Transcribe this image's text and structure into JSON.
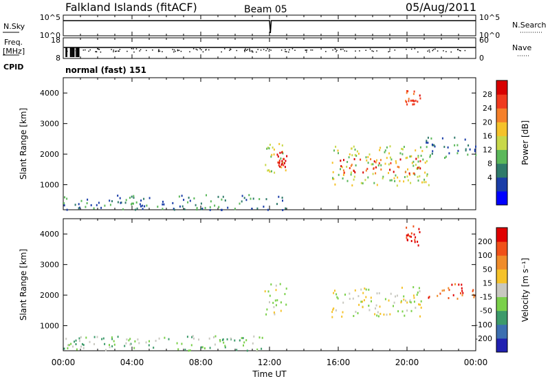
{
  "header": {
    "station": "Falkland Islands (fitACF)",
    "beam": "Beam 05",
    "date": "05/Aug/2011"
  },
  "left_labels": {
    "nsky": "N.Sky",
    "freq": "Freq.",
    "freq_unit": "[MHz]",
    "cpid": "CPID"
  },
  "right_labels": {
    "nsearch": "N.Search",
    "nave": "Nave"
  },
  "cpid_text": "normal (fast) 151",
  "chart_data": [
    {
      "type": "line",
      "name": "noise-panel",
      "left_label": "N.Sky",
      "right_label": "N.Search",
      "left_ticks": [
        "10^5",
        "10^0"
      ],
      "right_ticks": [
        "10^5",
        "10^0"
      ],
      "x_range_hours": [
        0,
        24
      ],
      "series": [
        {
          "x": [
            0.0,
            0.5,
            12.0,
            12.05,
            12.1,
            24.0
          ],
          "y": [
            5,
            5,
            5,
            0,
            5,
            5
          ]
        }
      ]
    },
    {
      "type": "scatter",
      "name": "freq-nave-panel",
      "left_label": "Freq. [MHz]",
      "right_label": "Nave",
      "left_ticks": [
        "18",
        "8"
      ],
      "right_ticks": [
        "60",
        "0"
      ],
      "x_range_hours": [
        0,
        24
      ],
      "series": [
        {
          "x": [
            0.0,
            0.5,
            1.0,
            12.0,
            24.0
          ],
          "y": [
            12,
            12,
            12,
            12,
            12
          ]
        }
      ]
    },
    {
      "type": "heatmap",
      "name": "power",
      "xlabel": "",
      "ylabel": "Slant Range [km]",
      "yticks": [
        1000,
        2000,
        3000,
        4000
      ],
      "ylim": [
        180,
        4500
      ],
      "colorbar": {
        "label": "Power [dB]",
        "ticks": [
          "28",
          "24",
          "20",
          "16",
          "12",
          "8",
          "4"
        ],
        "colors": [
          "#0000ff",
          "#1a3da8",
          "#2f7a6a",
          "#5bb85a",
          "#c8d84a",
          "#f5c22a",
          "#f5802a",
          "#f03a1e",
          "#d80000"
        ]
      },
      "regions": [
        {
          "t": [
            0.0,
            13.0
          ],
          "r": [
            200,
            700
          ],
          "level": 2
        },
        {
          "t": [
            11.7,
            13.0
          ],
          "r": [
            1300,
            2400
          ],
          "level": 4
        },
        {
          "t": [
            12.4,
            13.0
          ],
          "r": [
            1600,
            2100
          ],
          "level": 8
        },
        {
          "t": [
            15.6,
            21.3
          ],
          "r": [
            1000,
            2300
          ],
          "level": 4
        },
        {
          "t": [
            16.0,
            20.8
          ],
          "r": [
            1400,
            1900
          ],
          "level": 7
        },
        {
          "t": [
            19.8,
            20.8
          ],
          "r": [
            3600,
            4100
          ],
          "level": 7
        },
        {
          "t": [
            21.0,
            24.0
          ],
          "r": [
            1900,
            2600
          ],
          "level": 2
        }
      ]
    },
    {
      "type": "heatmap",
      "name": "velocity",
      "xlabel": "Time UT",
      "ylabel": "Slant Range [km]",
      "yticks": [
        1000,
        2000,
        3000,
        4000
      ],
      "ylim": [
        180,
        4500
      ],
      "xticks": [
        "00:00",
        "04:00",
        "08:00",
        "12:00",
        "16:00",
        "20:00",
        "00:00"
      ],
      "colorbar": {
        "label": "Velocity [m s⁻¹]",
        "ticks": [
          "200",
          "100",
          "50",
          "15",
          "-15",
          "-50",
          "-100",
          "-200"
        ],
        "colors": [
          "#2020b0",
          "#3c6fb0",
          "#3c9a6a",
          "#7ad04a",
          "#c8c8c0",
          "#f5c22a",
          "#f08c2a",
          "#f05018",
          "#e00000"
        ]
      },
      "regions": [
        {
          "t": [
            0.0,
            12.0
          ],
          "r": [
            200,
            700
          ],
          "level": 3
        },
        {
          "t": [
            11.7,
            13.0
          ],
          "r": [
            1400,
            2400
          ],
          "level": 4
        },
        {
          "t": [
            15.6,
            20.8
          ],
          "r": [
            1300,
            2300
          ],
          "level": 4
        },
        {
          "t": [
            19.8,
            20.8
          ],
          "r": [
            3600,
            4300
          ],
          "level": 8
        },
        {
          "t": [
            21.0,
            24.0
          ],
          "r": [
            1900,
            2400
          ],
          "level": 7
        }
      ]
    }
  ]
}
